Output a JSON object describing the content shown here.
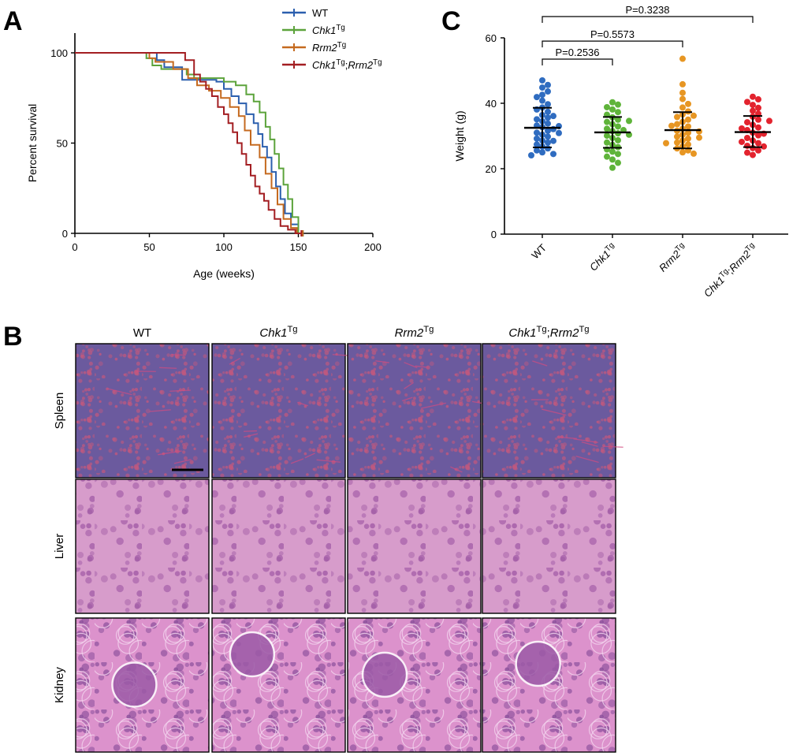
{
  "panels": {
    "A": "A",
    "B": "B",
    "C": "C"
  },
  "chart_data": [
    {
      "type": "line",
      "subtype": "kaplan-meier",
      "panel": "A",
      "xlabel": "Age (weeks)",
      "ylabel": "Percent survival",
      "xlim": [
        0,
        200
      ],
      "ylim": [
        0,
        100
      ],
      "xticks": [
        0,
        50,
        100,
        150,
        200
      ],
      "yticks": [
        0,
        50,
        100
      ],
      "legend_position": "top-right",
      "series": [
        {
          "name": "WT",
          "color": "#2b5fae",
          "x": [
            0,
            55,
            55,
            60,
            60,
            72,
            72,
            95,
            95,
            100,
            100,
            105,
            105,
            110,
            110,
            115,
            115,
            120,
            120,
            123,
            123,
            126,
            126,
            129,
            129,
            132,
            132,
            135,
            135,
            138,
            138,
            141,
            141,
            145,
            145,
            150,
            150,
            153
          ],
          "y": [
            100,
            100,
            96,
            96,
            92,
            92,
            85,
            85,
            84,
            84,
            80,
            80,
            76,
            76,
            72,
            72,
            66,
            66,
            61,
            61,
            55,
            55,
            48,
            48,
            42,
            42,
            34,
            34,
            26,
            26,
            19,
            19,
            11,
            11,
            5,
            5,
            0,
            0
          ]
        },
        {
          "name": "Chk1 Tg",
          "color": "#5ca33b",
          "x": [
            0,
            48,
            48,
            52,
            52,
            58,
            58,
            75,
            75,
            80,
            80,
            100,
            100,
            108,
            108,
            115,
            115,
            120,
            120,
            124,
            124,
            128,
            128,
            131,
            131,
            134,
            134,
            137,
            137,
            140,
            140,
            143,
            143,
            146,
            146,
            150,
            150,
            153
          ],
          "y": [
            100,
            100,
            97,
            97,
            93,
            93,
            91,
            91,
            88,
            88,
            86,
            86,
            84,
            84,
            82,
            82,
            77,
            77,
            73,
            73,
            67,
            67,
            59,
            59,
            52,
            52,
            44,
            44,
            36,
            36,
            27,
            27,
            19,
            19,
            9,
            9,
            0,
            0
          ]
        },
        {
          "name": "Rrm2 Tg",
          "color": "#c56a1f",
          "x": [
            0,
            50,
            50,
            54,
            54,
            66,
            66,
            76,
            76,
            82,
            82,
            90,
            90,
            98,
            98,
            104,
            104,
            110,
            110,
            114,
            114,
            118,
            118,
            124,
            124,
            128,
            128,
            132,
            132,
            136,
            136,
            140,
            140,
            145,
            145,
            149,
            149,
            153
          ],
          "y": [
            100,
            100,
            97,
            97,
            95,
            95,
            91,
            91,
            86,
            86,
            82,
            82,
            79,
            79,
            75,
            75,
            70,
            70,
            65,
            65,
            57,
            57,
            49,
            49,
            42,
            42,
            33,
            33,
            25,
            25,
            16,
            16,
            8,
            8,
            3,
            3,
            0,
            0
          ]
        },
        {
          "name": "Chk1 Tg;Rrm2 Tg",
          "color": "#a31e22",
          "x": [
            0,
            74,
            74,
            80,
            80,
            84,
            84,
            88,
            88,
            92,
            92,
            96,
            96,
            100,
            100,
            103,
            103,
            106,
            106,
            109,
            109,
            112,
            112,
            115,
            115,
            118,
            118,
            121,
            121,
            124,
            124,
            127,
            127,
            130,
            130,
            134,
            134,
            138,
            138,
            143,
            143,
            148,
            148,
            152
          ],
          "y": [
            100,
            100,
            96,
            96,
            88,
            88,
            84,
            84,
            80,
            80,
            76,
            76,
            70,
            70,
            66,
            66,
            61,
            61,
            56,
            56,
            50,
            50,
            44,
            44,
            38,
            38,
            32,
            32,
            26,
            26,
            22,
            22,
            18,
            18,
            13,
            13,
            8,
            8,
            4,
            4,
            2,
            2,
            0,
            0
          ]
        }
      ]
    },
    {
      "type": "scatter",
      "subtype": "dot-plot-mean-sd",
      "panel": "C",
      "ylabel": "Weight (g)",
      "ylim": [
        0,
        60
      ],
      "yticks": [
        0,
        20,
        40,
        60
      ],
      "categories": [
        "WT",
        "Chk1 Tg",
        "Rrm2 Tg",
        "Chk1 Tg;Rrm2 Tg"
      ],
      "groups": [
        {
          "name": "WT",
          "color": "#2f6cc0",
          "mean": 32.5,
          "sd_low": 26.5,
          "sd_high": 38.6,
          "values": [
            47.0,
            45.6,
            44.8,
            43.6,
            42.6,
            41.9,
            40.8,
            39.7,
            38.7,
            38.1,
            37.4,
            36.4,
            35.6,
            35.1,
            34.5,
            33.8,
            33.2,
            32.7,
            32.1,
            31.6,
            31.0,
            30.4,
            29.8,
            29.2,
            28.6,
            28.0,
            27.4,
            26.8,
            26.2,
            25.6,
            25.0,
            24.5,
            24.1,
            33.0,
            30.9,
            28.5,
            36.1
          ]
        },
        {
          "name": "Chk1 Tg",
          "color": "#5fb43a",
          "mean": 31.1,
          "sd_low": 26.4,
          "sd_high": 35.8,
          "values": [
            40.3,
            39.6,
            38.8,
            38.1,
            37.3,
            36.5,
            35.7,
            35.0,
            34.3,
            33.6,
            32.9,
            32.2,
            31.5,
            30.8,
            30.1,
            29.4,
            28.7,
            28.0,
            27.3,
            26.6,
            25.9,
            25.2,
            24.5,
            23.7,
            22.8,
            21.8,
            20.3,
            31.8,
            30.4,
            34.6
          ]
        },
        {
          "name": "Rrm2 Tg",
          "color": "#e79623",
          "mean": 31.8,
          "sd_low": 26.2,
          "sd_high": 37.3,
          "values": [
            53.6,
            45.8,
            43.2,
            41.3,
            39.8,
            38.7,
            37.5,
            36.6,
            35.8,
            35.0,
            34.3,
            33.6,
            32.9,
            32.2,
            31.6,
            31.0,
            30.4,
            29.8,
            29.2,
            28.6,
            28.0,
            27.4,
            26.8,
            26.2,
            25.6,
            25.0,
            24.6,
            31.4,
            33.1,
            29.5,
            36.2,
            27.8
          ]
        },
        {
          "name": "Chk1 Tg;Rrm2 Tg",
          "color": "#e3232e",
          "mean": 31.2,
          "sd_low": 26.6,
          "sd_high": 36.1,
          "values": [
            42.0,
            41.2,
            40.4,
            39.5,
            38.6,
            37.7,
            36.8,
            35.9,
            35.0,
            34.2,
            33.4,
            32.6,
            31.8,
            31.0,
            30.2,
            29.4,
            28.6,
            27.8,
            27.0,
            26.3,
            25.6,
            24.9,
            24.2,
            30.7,
            32.3,
            28.2,
            34.6,
            26.8
          ]
        }
      ],
      "comparisons": [
        {
          "from": "WT",
          "to": "Chk1 Tg",
          "label": "P=0.2536",
          "y": 53.5
        },
        {
          "from": "WT",
          "to": "Rrm2 Tg",
          "label": "P=0.5573",
          "y": 59.0
        },
        {
          "from": "WT",
          "to": "Chk1 Tg;Rrm2 Tg",
          "label": "P=0.3238",
          "y": 66.5
        }
      ]
    }
  ],
  "histology": {
    "columns": [
      "WT",
      "Chk1 Tg",
      "Rrm2 Tg",
      "Chk1 Tg;Rrm2 Tg"
    ],
    "rows": [
      "Spleen",
      "Liver",
      "Kidney"
    ],
    "tint": {
      "Spleen": [
        "#6b5a9e",
        "#c0587e"
      ],
      "Liver": [
        "#d79ccb",
        "#a35da7"
      ],
      "Kidney": [
        "#dc92cc",
        "#8a4f9c"
      ]
    }
  }
}
